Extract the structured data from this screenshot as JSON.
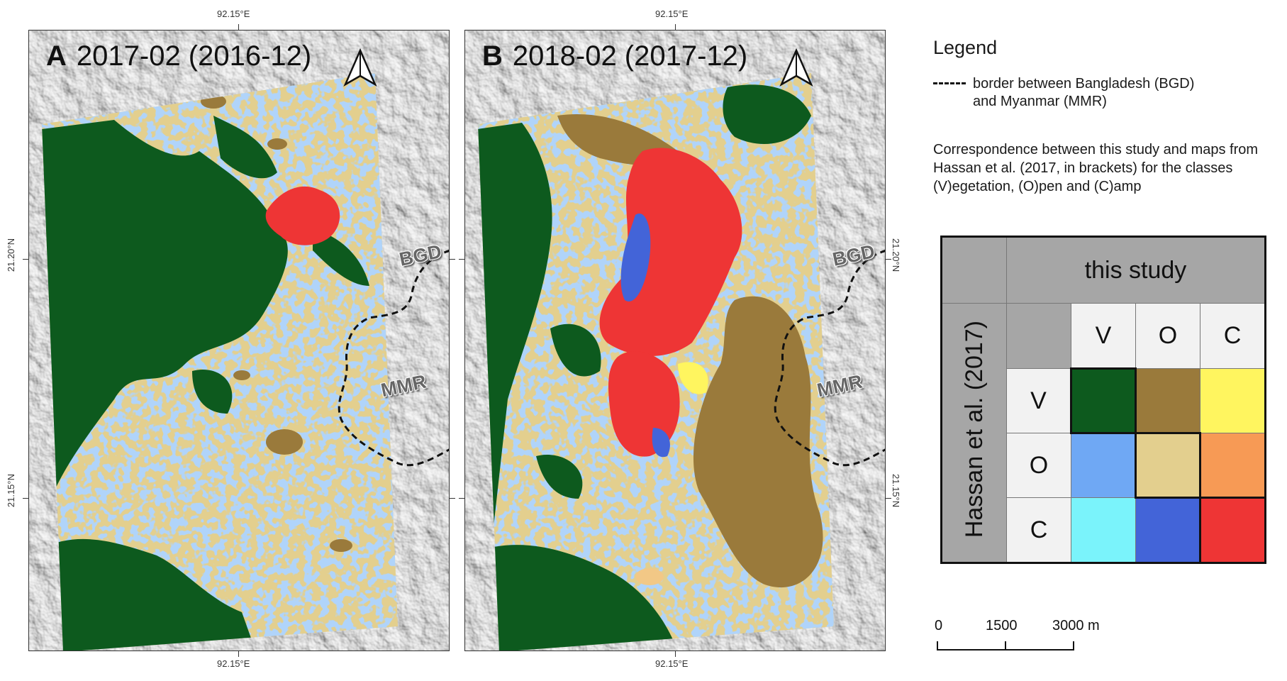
{
  "coords": {
    "lon_top_a": "92.15°E",
    "lon_top_b": "92.15°E",
    "lon_bottom_a": "92.15°E",
    "lon_bottom_b": "92.15°E",
    "lat_20_left": "21.20°N",
    "lat_15_left": "21.15°N",
    "lat_20_right": "21.20°N",
    "lat_15_right": "21.15°N"
  },
  "panels": [
    {
      "letter": "A",
      "title": "2017-02 (2016-12)",
      "label_bgd": "BGD",
      "label_mmr": "MMR"
    },
    {
      "letter": "B",
      "title": "2018-02 (2017-12)",
      "label_bgd": "BGD",
      "label_mmr": "MMR"
    }
  ],
  "legend": {
    "title": "Legend",
    "border_text": "border between Bangladesh (BGD) and Myanmar (MMR)",
    "correspondence_text": "Correspondence between this study and maps from Hassan et al. (2017, in brackets) for the classes (V)egetation, (O)pen and (C)amp"
  },
  "matrix": {
    "col_header": "this study",
    "row_header": "Hassan et al. (2017)",
    "classes": [
      "V",
      "O",
      "C"
    ],
    "colors": [
      [
        "#0d5a1e",
        "#9a7a3b",
        "#fff55f"
      ],
      [
        "#6fa8f4",
        "#e3cf8e",
        "#f79a55"
      ],
      [
        "#7af3fb",
        "#4364d8",
        "#ee3535"
      ]
    ]
  },
  "scalebar": {
    "labels": [
      "0",
      "1500",
      "3000 m"
    ]
  },
  "colors": {
    "vegetation": "#0d5a1e",
    "veg_to_open": "#9a7a3b",
    "open": "#e3cf8e",
    "open_to_veg": "#6fa8f4",
    "camp": "#ee3535",
    "camp_to_open": "#4364d8",
    "veg_to_camp": "#fff55f",
    "hillshade": "#d8d8d8"
  }
}
